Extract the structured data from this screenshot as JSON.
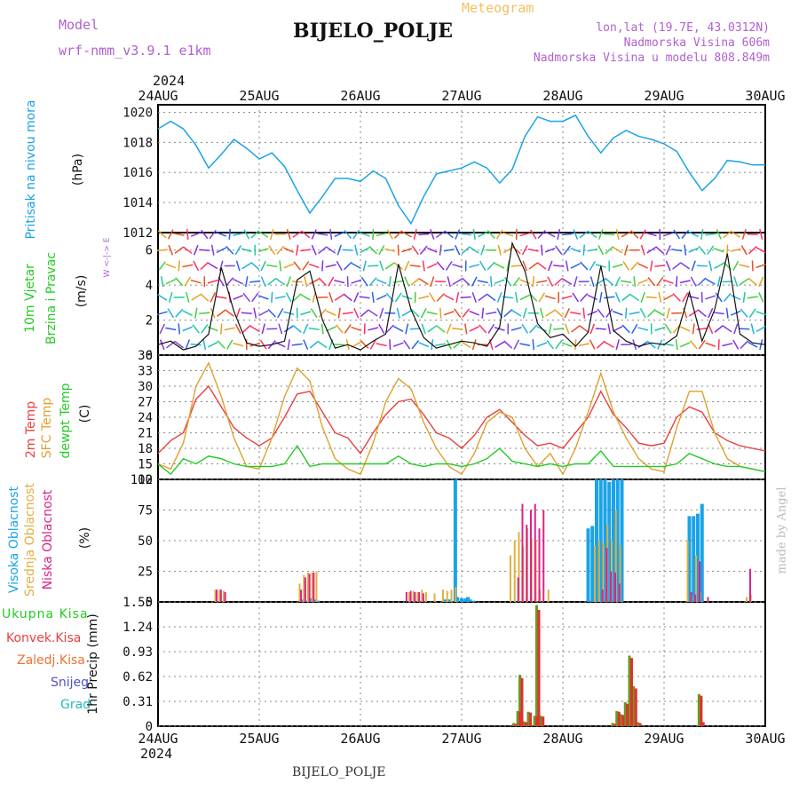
{
  "header": {
    "model_label": "Model",
    "model_value": "wrf-nmm_v3.9.1  e1km",
    "station": "BIJELO_POLJE",
    "product": "Meteogram",
    "lonlat": "lon,lat (19.7E, 43.0312N)",
    "elevation": "Nadmorska Visina 606m",
    "elevation_model": "Nadmorska Visina u modelu 808.849m",
    "footer_station": "BIJELO_POLJE",
    "credit": "made by Angel",
    "year_top": "2024",
    "year_bottom": "2024"
  },
  "colors": {
    "pressure": "#1aa3e8",
    "temp2m": "#e84040",
    "sfc": "#e0a030",
    "dewpt": "#22cc22",
    "high_cloud": "#1aa3e8",
    "mid_cloud": "#e0b040",
    "low_cloud": "#dd2288",
    "total_precip": "#6a9a20",
    "conv_precip": "#e03030",
    "header_purple": "#b060d0",
    "header_orange": "#f0c060"
  },
  "chart_data": {
    "type": "line",
    "x_axis": {
      "ticks": [
        "24AUG",
        "25AUG",
        "26AUG",
        "27AUG",
        "28AUG",
        "29AUG",
        "30AUG"
      ],
      "start": "2024-08-24T00",
      "end": "2024-08-30T00",
      "range_hours": [
        0,
        144
      ]
    },
    "panels": {
      "pressure": {
        "labels": [
          "Pritisak na nivou mora",
          "(hPa)"
        ],
        "ylim": [
          1012,
          1020.5
        ],
        "yticks": [
          1012,
          1014,
          1016,
          1018,
          1020
        ],
        "hours": [
          0,
          3,
          6,
          9,
          12,
          15,
          18,
          21,
          24,
          27,
          30,
          33,
          36,
          39,
          42,
          45,
          48,
          51,
          54,
          57,
          60,
          63,
          66,
          69,
          72,
          75,
          78,
          81,
          84,
          87,
          90,
          93,
          96,
          99,
          102,
          105,
          108,
          111,
          114,
          117,
          120,
          123,
          126,
          129,
          132,
          135,
          138,
          141,
          144
        ],
        "values": [
          1018.9,
          1019.4,
          1018.9,
          1017.8,
          1016.3,
          1017.2,
          1018.2,
          1017.6,
          1016.9,
          1017.3,
          1016.4,
          1014.8,
          1013.3,
          1014.4,
          1015.6,
          1015.6,
          1015.4,
          1016.1,
          1015.6,
          1013.8,
          1012.6,
          1014.4,
          1015.9,
          1016.1,
          1016.3,
          1016.7,
          1016.3,
          1015.3,
          1016.2,
          1018.4,
          1019.7,
          1019.4,
          1019.4,
          1019.8,
          1018.4,
          1017.3,
          1018.3,
          1018.8,
          1018.4,
          1018.2,
          1017.9,
          1017.4,
          1016.0,
          1014.8,
          1015.6,
          1016.8,
          1016.7,
          1016.5,
          1016.5
        ]
      },
      "wind": {
        "labels": [
          "10m Vjetar",
          "Brzina i Pravac",
          "(m/s)"
        ],
        "compass": "W <-|-> E",
        "ylim": [
          0,
          7
        ],
        "yticks": [
          0,
          2,
          4,
          6
        ],
        "hours": [
          0,
          3,
          6,
          9,
          12,
          15,
          18,
          21,
          24,
          27,
          30,
          33,
          36,
          39,
          42,
          45,
          48,
          51,
          54,
          57,
          60,
          63,
          66,
          69,
          72,
          75,
          78,
          81,
          84,
          87,
          90,
          93,
          96,
          99,
          102,
          105,
          108,
          111,
          114,
          117,
          120,
          123,
          126,
          129,
          132,
          135,
          138,
          141,
          144
        ],
        "values": [
          0.6,
          0.8,
          0.3,
          0.5,
          1.2,
          5.0,
          2.5,
          0.7,
          0.5,
          0.6,
          0.8,
          4.3,
          4.8,
          2.0,
          0.4,
          0.6,
          0.3,
          0.8,
          1.2,
          5.2,
          2.6,
          1.0,
          0.4,
          0.6,
          0.8,
          0.7,
          0.5,
          1.6,
          6.4,
          4.8,
          1.8,
          1.0,
          1.2,
          0.5,
          1.3,
          5.1,
          1.4,
          0.8,
          0.5,
          0.7,
          0.6,
          1.1,
          3.6,
          0.8,
          2.6,
          5.8,
          1.2,
          0.7,
          0.6
        ]
      },
      "temperature": {
        "labels": [
          "2m Temp",
          "SFC Temp",
          "dewpt Temp",
          "(C)"
        ],
        "ylim": [
          12,
          36
        ],
        "yticks": [
          12,
          15,
          18,
          21,
          24,
          27,
          30,
          33,
          36
        ],
        "series": [
          {
            "name": "2m Temp",
            "hours": [
              0,
              3,
              6,
              9,
              12,
              15,
              18,
              21,
              24,
              27,
              30,
              33,
              36,
              39,
              42,
              45,
              48,
              51,
              54,
              57,
              60,
              63,
              66,
              69,
              72,
              75,
              78,
              81,
              84,
              87,
              90,
              93,
              96,
              99,
              102,
              105,
              108,
              111,
              114,
              117,
              120,
              123,
              126,
              129,
              132,
              135,
              138,
              141,
              144
            ],
            "values": [
              17,
              19.5,
              21,
              27.5,
              30,
              26,
              22,
              20,
              18.5,
              20,
              24,
              28.5,
              29,
              25,
              21,
              20,
              17,
              21,
              24.5,
              27,
              27.5,
              24.5,
              21,
              20,
              18,
              20.5,
              24,
              25.5,
              23,
              20.5,
              18.5,
              19,
              18,
              21,
              24,
              29,
              24.5,
              22,
              19,
              18.5,
              19,
              24,
              26,
              25,
              21,
              19.5,
              18.5,
              18,
              17.5
            ]
          },
          {
            "name": "SFC Temp",
            "hours": [
              0,
              3,
              6,
              9,
              12,
              15,
              18,
              21,
              24,
              27,
              30,
              33,
              36,
              39,
              42,
              45,
              48,
              51,
              54,
              57,
              60,
              63,
              66,
              69,
              72,
              75,
              78,
              81,
              84,
              87,
              90,
              93,
              96,
              99,
              102,
              105,
              108,
              111,
              114,
              117,
              120,
              123,
              126,
              129,
              132,
              135,
              138,
              141,
              144
            ],
            "values": [
              15,
              14,
              19,
              30,
              34.5,
              28,
              20,
              14.5,
              14,
              20,
              28,
              33.5,
              31,
              22,
              16,
              14,
              13,
              19,
              27,
              31.5,
              29.5,
              23,
              18,
              14.5,
              13,
              17,
              23,
              25,
              24,
              18,
              14.5,
              17,
              13,
              18,
              25,
              32.5,
              25,
              20,
              16,
              14,
              13.5,
              22,
              29,
              29,
              21,
              16,
              14.5,
              14,
              13.5
            ]
          },
          {
            "name": "dewpt Temp",
            "hours": [
              0,
              3,
              6,
              9,
              12,
              15,
              18,
              21,
              24,
              27,
              30,
              33,
              36,
              39,
              42,
              45,
              48,
              51,
              54,
              57,
              60,
              63,
              66,
              69,
              72,
              75,
              78,
              81,
              84,
              87,
              90,
              93,
              96,
              99,
              102,
              105,
              108,
              111,
              114,
              117,
              120,
              123,
              126,
              129,
              132,
              135,
              138,
              141,
              144
            ],
            "values": [
              15,
              13,
              16,
              15,
              16.5,
              16,
              15,
              14.5,
              14.5,
              14.5,
              15,
              18.5,
              14.5,
              15,
              15,
              15,
              15,
              15,
              15,
              16.5,
              15,
              14.5,
              15,
              15,
              14.5,
              15,
              16,
              18,
              15.5,
              15,
              14.5,
              15,
              14.5,
              15,
              15,
              17.5,
              14.5,
              14.5,
              14.5,
              14.5,
              14.5,
              15,
              17,
              16,
              15,
              14.5,
              14.5,
              14,
              13.5
            ]
          }
        ]
      },
      "clouds": {
        "labels": [
          "Visoka Oblacnost",
          "Srednja Oblacnost",
          "Niska Oblacnost",
          "(%)"
        ],
        "ylim": [
          0,
          100
        ],
        "yticks": [
          0,
          25,
          50,
          75,
          100
        ],
        "series": [
          {
            "name": "Visoka Oblacnost",
            "hours": [
              34.5,
              35.5,
              36.5,
              37,
              38,
              68,
              69,
              70.5,
              71,
              72,
              72.5,
              73,
              73.5,
              74,
              75,
              102,
              103,
              104,
              105,
              106,
              107,
              108,
              109,
              110,
              126,
              127,
              128,
              129
            ],
            "values": [
              2,
              1,
              3,
              2,
              1,
              2,
              2,
              100,
              4,
              3,
              2,
              3,
              4,
              2,
              1,
              60,
              62,
              100,
              100,
              100,
              98,
              100,
              100,
              100,
              70,
              70,
              72,
              80
            ]
          },
          {
            "name": "Srednja Oblacnost",
            "hours": [
              14,
              15,
              16,
              34,
              35,
              36,
              37,
              38,
              60,
              61,
              62,
              63,
              64,
              66,
              68,
              69,
              70,
              71,
              84,
              85,
              86,
              87,
              88,
              89,
              90,
              91,
              93,
              104,
              105,
              106,
              107,
              108,
              109,
              110,
              126,
              127,
              128,
              129,
              140,
              141
            ],
            "values": [
              10,
              10,
              9,
              15,
              22,
              24,
              24,
              25,
              8,
              9,
              8,
              10,
              8,
              7,
              10,
              9,
              10,
              12,
              38,
              50,
              57,
              45,
              60,
              52,
              50,
              10,
              10,
              46,
              50,
              48,
              63,
              50,
              75,
              46,
              50,
              5,
              38,
              8,
              4,
              6
            ]
          },
          {
            "name": "Niska Oblacnost",
            "hours": [
              13.5,
              14.5,
              15.5,
              33.5,
              34.5,
              35.5,
              36.5,
              58.5,
              59.5,
              60.5,
              61.5,
              62.5,
              85,
              86,
              87,
              88,
              89,
              90,
              91,
              105,
              106,
              107,
              108,
              109,
              126,
              127,
              128,
              130,
              140
            ],
            "values": [
              10,
              10,
              8,
              10,
              20,
              23,
              24,
              8,
              9,
              8,
              8,
              7,
              20,
              80,
              63,
              75,
              80,
              60,
              75,
              10,
              44,
              25,
              24,
              15,
              8,
              6,
              33,
              4,
              27
            ]
          }
        ]
      },
      "precip": {
        "labels": [
          "Ukupna Kisa",
          "Konvek.Kisa",
          "Zaledj.Kisa",
          "Snijeg",
          "Grad",
          "1hr Precip (mm)"
        ],
        "ylim": [
          0,
          1.55
        ],
        "yticks": [
          0,
          0.31,
          0.62,
          0.93,
          1.24,
          1.55
        ],
        "series": [
          {
            "name": "Ukupna Kisa",
            "hours": [
              84.5,
              85.5,
              86,
              87,
              88,
              89.5,
              90,
              91,
              108,
              109,
              110,
              111,
              112,
              113,
              114,
              128.5,
              129
            ],
            "values": [
              0.04,
              0.19,
              0.64,
              0.06,
              0.18,
              0.13,
              1.51,
              0.13,
              0.04,
              0.19,
              0.15,
              0.3,
              0.88,
              0.5,
              0.05,
              0.4,
              0.07
            ]
          },
          {
            "name": "Konvek.Kisa",
            "hours": [
              84.5,
              85.5,
              86,
              87,
              88,
              89.5,
              90,
              91,
              108,
              109,
              110,
              111,
              112,
              113,
              114,
              128.5,
              129
            ],
            "values": [
              0.03,
              0.18,
              0.6,
              0.05,
              0.17,
              0.12,
              1.45,
              0.12,
              0.03,
              0.18,
              0.14,
              0.28,
              0.85,
              0.47,
              0.04,
              0.38,
              0.05
            ]
          }
        ]
      }
    }
  }
}
